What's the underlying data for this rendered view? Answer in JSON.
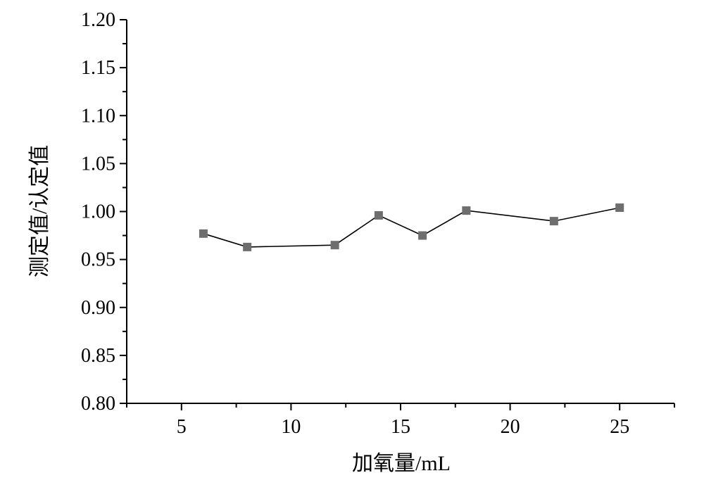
{
  "chart_data": {
    "type": "line",
    "xlabel": "加氧量/mL",
    "ylabel": "测定值/认定值",
    "xlim": [
      2.5,
      27.5
    ],
    "ylim": [
      0.8,
      1.2
    ],
    "x_ticks": [
      "5",
      "10",
      "15",
      "20",
      "25"
    ],
    "x_tick_values": [
      5,
      10,
      15,
      20,
      25
    ],
    "y_ticks": [
      "0.80",
      "0.85",
      "0.90",
      "0.95",
      "1.00",
      "1.05",
      "1.10",
      "1.15",
      "1.20"
    ],
    "y_tick_values": [
      0.8,
      0.85,
      0.9,
      0.95,
      1.0,
      1.05,
      1.1,
      1.15,
      1.2
    ],
    "grid": false,
    "legend": "none",
    "series": [
      {
        "marker": "square",
        "color": "#6e6e6e",
        "line_color": "#000000",
        "points": [
          {
            "x": 6,
            "y": 0.977
          },
          {
            "x": 8,
            "y": 0.963
          },
          {
            "x": 12,
            "y": 0.965
          },
          {
            "x": 14,
            "y": 0.996
          },
          {
            "x": 16,
            "y": 0.975
          },
          {
            "x": 18,
            "y": 1.001
          },
          {
            "x": 22,
            "y": 0.99
          },
          {
            "x": 25,
            "y": 1.004
          }
        ]
      }
    ]
  }
}
